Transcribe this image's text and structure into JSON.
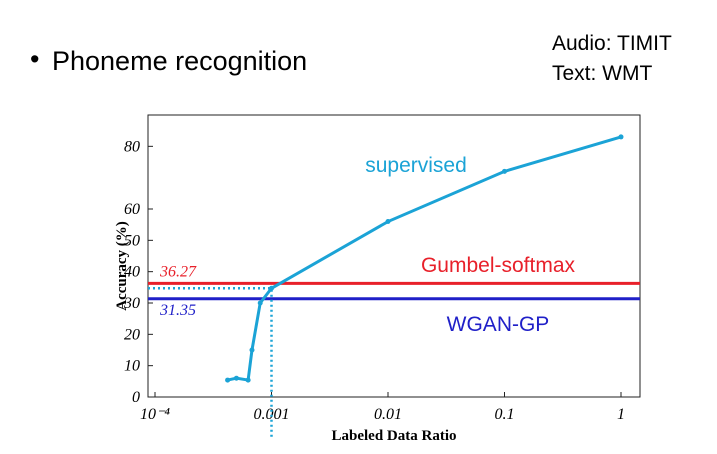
{
  "slide": {
    "bullet": "Phoneme recognition",
    "notes": [
      "Audio: TIMIT",
      "Text: WMT"
    ]
  },
  "chart_data": {
    "type": "line",
    "x_label": "Labeled Data Ratio",
    "y_label": "Accuracy (%)",
    "x_scale": "log",
    "xlim": [
      0.0001,
      1.0
    ],
    "xticks": [
      {
        "value": 0.0001,
        "label": "10⁻⁴"
      },
      0.001,
      0.01,
      0.1,
      1.0
    ],
    "ylim": [
      0,
      90
    ],
    "yticks": [
      0,
      10,
      20,
      30,
      40,
      50,
      60,
      80
    ],
    "series": [
      {
        "name": "supervised",
        "color": "#1ba3d6",
        "x": [
          0.00042,
          0.0005,
          0.00063,
          0.00068,
          0.0008,
          0.001,
          0.01,
          0.1,
          1.0
        ],
        "values": [
          5.4,
          6,
          5.4,
          15,
          30,
          34.7,
          56,
          72,
          83
        ]
      }
    ],
    "reference_lines": [
      {
        "name": "Gumbel-softmax",
        "value": 36.27,
        "color": "#e8202a"
      },
      {
        "name": "WGAN-GP",
        "value": 31.35,
        "color": "#2020c8"
      }
    ]
  }
}
